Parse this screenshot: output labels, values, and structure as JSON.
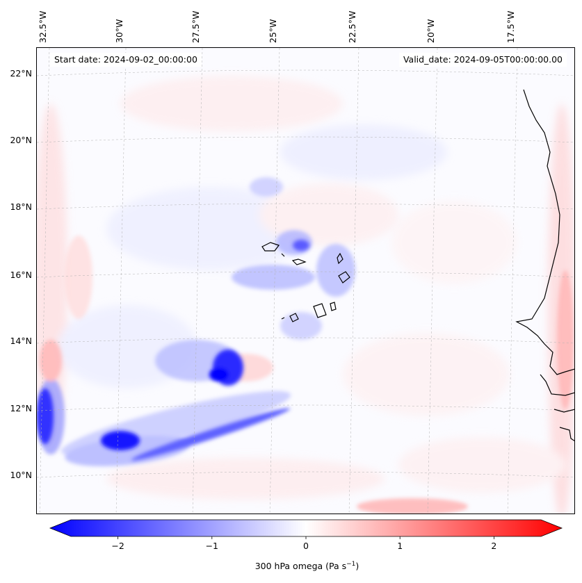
{
  "header": {
    "start_date": "Start date: 2024-09-02_00:00:00",
    "valid_date": "Valid_date: 2024-09-05T00:00:00.00"
  },
  "map": {
    "longitude_labels": [
      "32.5°W",
      "30°W",
      "27.5°W",
      "25°W",
      "22.5°W",
      "20°W",
      "17.5°W"
    ],
    "latitude_labels": [
      "22°N",
      "20°N",
      "18°N",
      "16°N",
      "14°N",
      "12°N",
      "10°N"
    ],
    "lon_min": -33.5,
    "lon_max": -15.5,
    "lat_min": 9,
    "lat_max": 22.8
  },
  "colorbar": {
    "tick_labels": [
      "−2",
      "−1",
      "0",
      "1",
      "2"
    ],
    "tick_values": [
      -2,
      -1,
      0,
      1,
      2
    ],
    "min": -2.5,
    "max": 2.5,
    "label": "300 hPa omega (Pa s",
    "label_sup": "−1",
    "label_end": ")",
    "negative_color": "#0000ff",
    "positive_color": "#ff0000"
  }
}
